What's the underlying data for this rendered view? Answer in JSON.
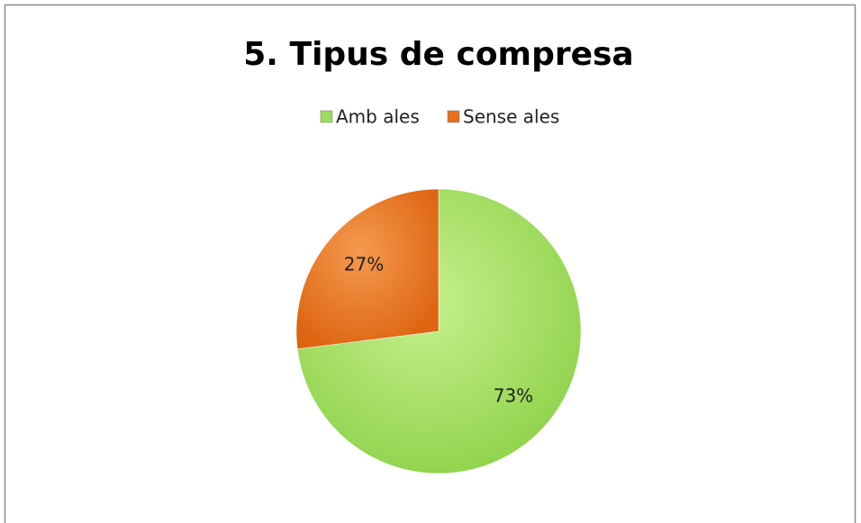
{
  "chart_data": {
    "type": "pie",
    "title": "5. Tipus de compresa",
    "categories": [
      "Amb ales",
      "Sense ales"
    ],
    "values": [
      73,
      27
    ],
    "value_labels": [
      "73%",
      "27%"
    ],
    "colors": [
      "#9ddb5c",
      "#e8711c"
    ],
    "legend": "top"
  }
}
